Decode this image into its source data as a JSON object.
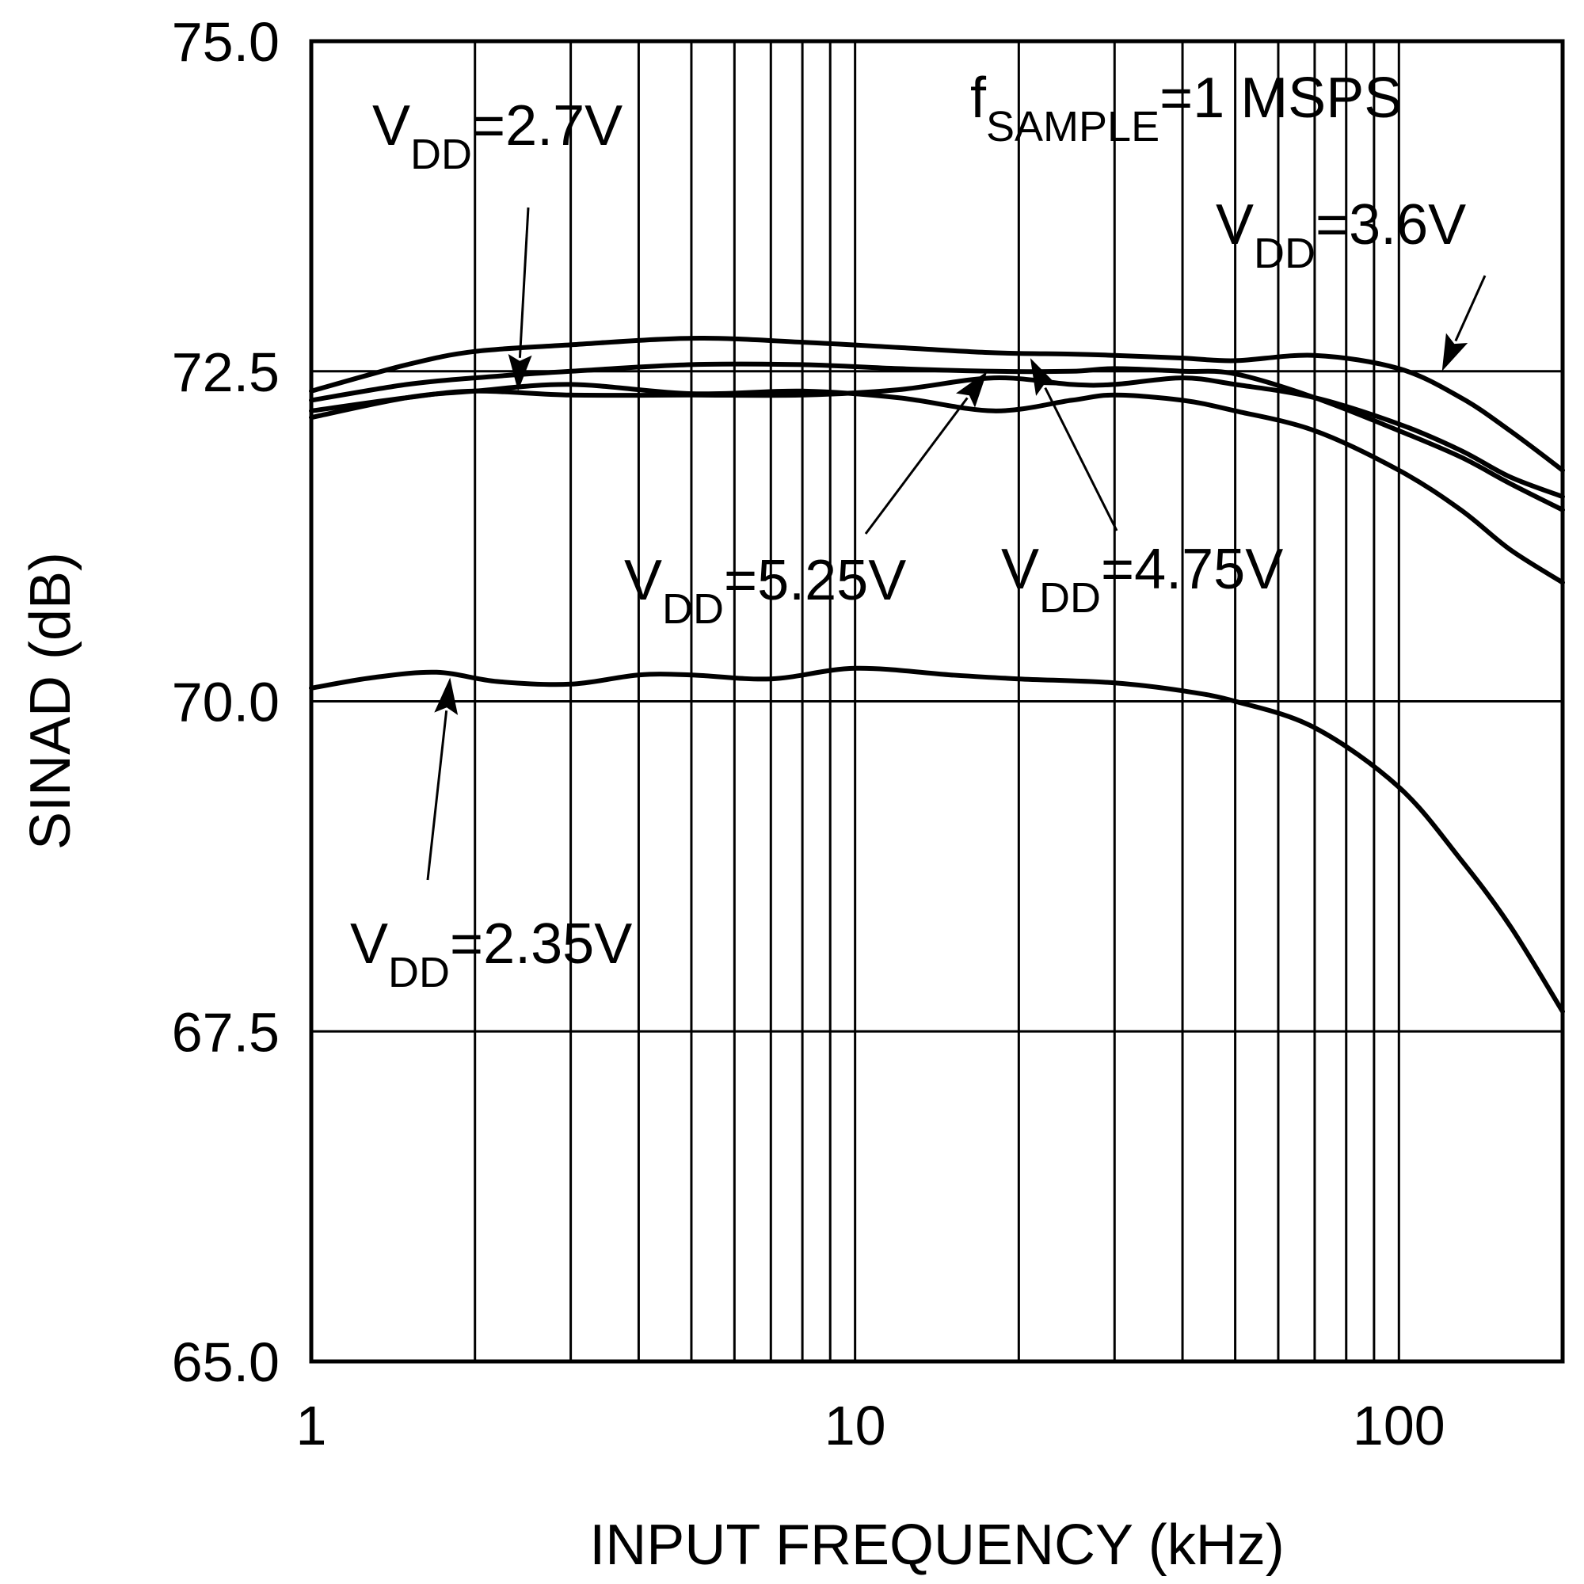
{
  "chart_data": {
    "type": "line",
    "title": "",
    "xlabel": "INPUT FREQUENCY (kHz)",
    "ylabel": "SINAD (dB)",
    "xscale": "log",
    "xlim": [
      1,
      200
    ],
    "ylim": [
      65.0,
      75.0
    ],
    "xticks": [
      1,
      10,
      100
    ],
    "xtick_labels": [
      "1",
      "10",
      "100"
    ],
    "yticks": [
      65.0,
      67.5,
      70.0,
      72.5,
      75.0
    ],
    "ytick_labels": [
      "65.0",
      "67.5",
      "70.0",
      "72.5",
      "75.0"
    ],
    "grid": true,
    "series": [
      {
        "name": "VDD=3.6V",
        "x": [
          1,
          1.5,
          2,
          3,
          5,
          8,
          12,
          18,
          25,
          30,
          40,
          50,
          70,
          100,
          130,
          160,
          200
        ],
        "y": [
          72.35,
          72.55,
          72.65,
          72.7,
          72.75,
          72.72,
          72.68,
          72.64,
          72.63,
          72.62,
          72.6,
          72.58,
          72.62,
          72.52,
          72.3,
          72.05,
          71.75
        ]
      },
      {
        "name": "VDD=2.7V",
        "x": [
          1,
          1.5,
          2,
          3,
          5,
          8,
          12,
          18,
          25,
          30,
          40,
          50,
          70,
          100,
          130,
          160,
          200
        ],
        "y": [
          72.28,
          72.4,
          72.45,
          72.5,
          72.55,
          72.55,
          72.52,
          72.5,
          72.5,
          72.52,
          72.5,
          72.48,
          72.3,
          72.05,
          71.85,
          71.65,
          71.45
        ]
      },
      {
        "name": "VDD=5.25V",
        "x": [
          1,
          1.5,
          2,
          3,
          5,
          8,
          12,
          18,
          25,
          30,
          40,
          50,
          70,
          100,
          130,
          160,
          200
        ],
        "y": [
          72.2,
          72.3,
          72.35,
          72.32,
          72.32,
          72.32,
          72.36,
          72.45,
          72.4,
          72.4,
          72.45,
          72.4,
          72.3,
          72.1,
          71.9,
          71.7,
          71.55
        ]
      },
      {
        "name": "VDD=4.75V",
        "x": [
          1,
          1.5,
          2,
          3,
          5,
          8,
          12,
          18,
          25,
          30,
          40,
          50,
          70,
          100,
          130,
          160,
          200
        ],
        "y": [
          72.15,
          72.3,
          72.35,
          72.4,
          72.33,
          72.35,
          72.3,
          72.2,
          72.28,
          72.32,
          72.28,
          72.2,
          72.05,
          71.75,
          71.45,
          71.15,
          70.9
        ]
      },
      {
        "name": "VDD=2.35V",
        "x": [
          1,
          1.3,
          1.7,
          2.2,
          3,
          4,
          5,
          7,
          10,
          15,
          20,
          30,
          40,
          50,
          70,
          100,
          130,
          160,
          200
        ],
        "y": [
          70.1,
          70.18,
          70.22,
          70.15,
          70.13,
          70.2,
          70.2,
          70.17,
          70.25,
          70.2,
          70.17,
          70.14,
          70.08,
          70.0,
          69.8,
          69.35,
          68.8,
          68.3,
          67.65
        ]
      }
    ],
    "annotations": [
      {
        "id": "sample",
        "main": "f",
        "sub": "SAMPLE",
        "suffix": "=1 MSPS"
      },
      {
        "id": "vdd27",
        "main": "V",
        "sub": "DD",
        "suffix": "=2.7V",
        "target": {
          "x": 2.4,
          "y": 72.35
        }
      },
      {
        "id": "vdd36",
        "main": "V",
        "sub": "DD",
        "suffix": "=3.6V",
        "target": {
          "x": 120,
          "y": 72.5
        }
      },
      {
        "id": "vdd525",
        "main": "V",
        "sub": "DD",
        "suffix": "=5.25V",
        "target": {
          "x": 17.5,
          "y": 72.5
        }
      },
      {
        "id": "vdd475",
        "main": "V",
        "sub": "DD",
        "suffix": "=4.75V",
        "target": {
          "x": 21,
          "y": 72.6
        }
      },
      {
        "id": "vdd235",
        "main": "V",
        "sub": "DD",
        "suffix": "=2.35V",
        "target": {
          "x": 1.8,
          "y": 70.18
        }
      }
    ]
  }
}
